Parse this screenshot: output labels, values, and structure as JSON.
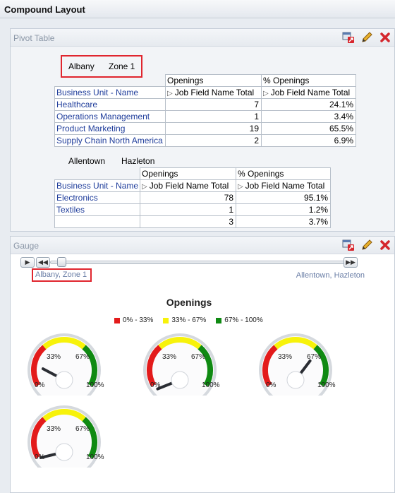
{
  "window": {
    "title": "Compound Layout"
  },
  "pivot": {
    "title": "Pivot Table",
    "tools": [
      "export-icon",
      "edit-icon",
      "close-icon"
    ],
    "sections": [
      {
        "edge": [
          "Albany",
          "Zone 1"
        ],
        "measure_headers": [
          "Openings",
          "% Openings"
        ],
        "row_header": "Business Unit - Name",
        "col_header": "Job Field Name Total",
        "rows": [
          {
            "name": "Healthcare",
            "openings": "7",
            "pct": "24.1%"
          },
          {
            "name": "Operations Management",
            "openings": "1",
            "pct": "3.4%"
          },
          {
            "name": "Product Marketing",
            "openings": "19",
            "pct": "65.5%"
          },
          {
            "name": "Supply Chain North America",
            "openings": "2",
            "pct": "6.9%"
          }
        ]
      },
      {
        "edge": [
          "Allentown",
          "Hazleton"
        ],
        "measure_headers": [
          "Openings",
          "% Openings"
        ],
        "row_header": "Business Unit - Name",
        "col_header": "Job Field Name Total",
        "rows": [
          {
            "name": "Electronics",
            "openings": "78",
            "pct": "95.1%"
          },
          {
            "name": "Textiles",
            "openings": "1",
            "pct": "1.2%"
          },
          {
            "name": "",
            "openings": "3",
            "pct": "3.7%"
          }
        ]
      }
    ]
  },
  "gauge": {
    "title": "Gauge",
    "tools": [
      "export-icon",
      "edit-icon",
      "close-icon"
    ],
    "slider": {
      "buttons": [
        "play-icon",
        "step-back-icon",
        "step-forward-icon"
      ],
      "current_label": "Albany, Zone 1",
      "end_label": "Allentown, Hazleton",
      "position": 0
    },
    "chart_title": "Openings",
    "legend": [
      {
        "label": "0% - 33%",
        "color": "#e31b1b"
      },
      {
        "label": "33% - 67%",
        "color": "#f7f20a"
      },
      {
        "label": "67% - 100%",
        "color": "#0f8a12"
      }
    ],
    "tick_labels": {
      "min": "0%",
      "t1": "33%",
      "t2": "67%",
      "max": "100%"
    },
    "gauges": [
      {
        "value": 24.1
      },
      {
        "value": 3.4
      },
      {
        "value": 65.5
      },
      {
        "value": 6.9
      }
    ]
  },
  "chart_data": {
    "type": "gauge",
    "title": "Openings",
    "categories": [
      "Healthcare",
      "Operations Management",
      "Product Marketing",
      "Supply Chain North America"
    ],
    "values": [
      24.1,
      3.4,
      65.5,
      6.9
    ],
    "range": [
      0,
      100
    ],
    "thresholds": [
      {
        "label": "0% - 33%",
        "min": 0,
        "max": 33,
        "color": "#e31b1b"
      },
      {
        "label": "33% - 67%",
        "min": 33,
        "max": 67,
        "color": "#f7f20a"
      },
      {
        "label": "67% - 100%",
        "min": 67,
        "max": 100,
        "color": "#0f8a12"
      }
    ],
    "legend": "top"
  }
}
